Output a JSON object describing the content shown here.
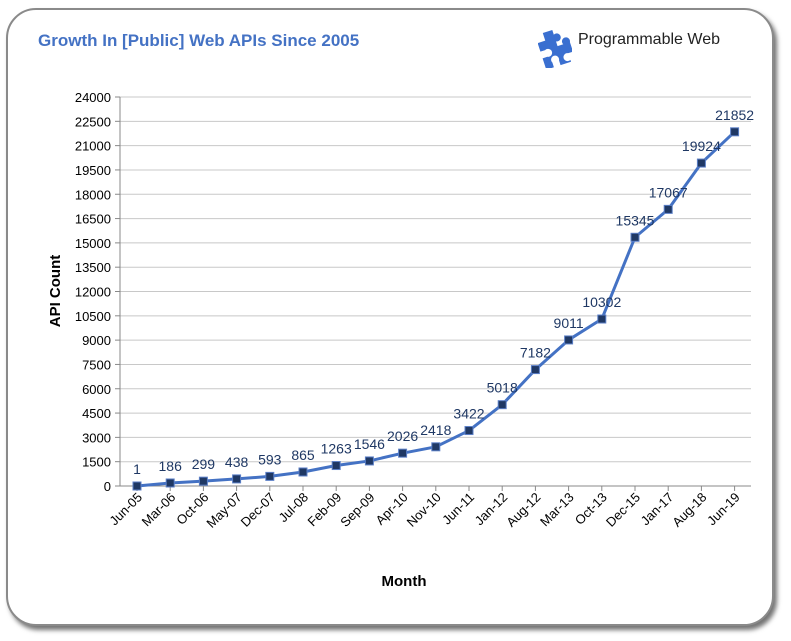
{
  "header": {
    "title": "Growth In [Public] Web APIs Since 2005",
    "brand_name": "Programmable Web",
    "brand_icon": "puzzle-piece-icon",
    "brand_color": "#3a6fd0"
  },
  "chart_data": {
    "type": "line",
    "title": "Growth In [Public] Web APIs Since 2005",
    "xlabel": "Month",
    "ylabel": "API Count",
    "categories": [
      "Jun-05",
      "Mar-06",
      "Oct-06",
      "May-07",
      "Dec-07",
      "Jul-08",
      "Feb-09",
      "Sep-09",
      "Apr-10",
      "Nov-10",
      "Jun-11",
      "Jan-12",
      "Aug-12",
      "Mar-13",
      "Oct-13",
      "Dec-15",
      "Jan-17",
      "Aug-18",
      "Jun-19"
    ],
    "series": [
      {
        "values": [
          1,
          186,
          299,
          438,
          593,
          865,
          1263,
          1546,
          2026,
          2418,
          3422,
          5018,
          7182,
          9011,
          10302,
          15345,
          17067,
          19924,
          21852
        ],
        "color": "#4472c4"
      }
    ],
    "ylim": [
      0,
      24000
    ],
    "yticks": [
      0,
      1500,
      3000,
      4500,
      6000,
      7500,
      9000,
      10500,
      12000,
      13500,
      15000,
      16500,
      18000,
      19500,
      21000,
      22500,
      24000
    ],
    "grid": true,
    "data_labels": true
  }
}
